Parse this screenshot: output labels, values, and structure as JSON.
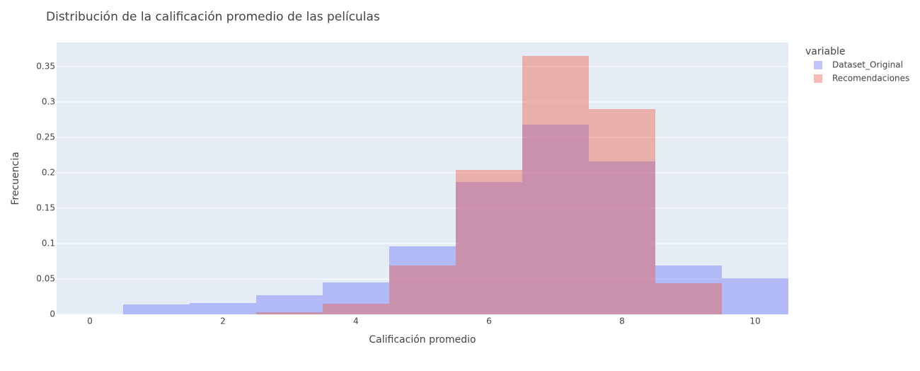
{
  "chart_data": {
    "type": "histogram",
    "title": "Distribución de la calificación promedio de las películas",
    "x_label": "Calificación promedio",
    "y_label": "Frecuencia",
    "legend_title": "variable",
    "bins": [
      -0.5,
      0.5,
      1.5,
      2.5,
      3.5,
      4.5,
      5.5,
      6.5,
      7.5,
      8.5,
      9.5,
      10.5
    ],
    "series": [
      {
        "name": "Dataset_Original",
        "color": "#636efa",
        "values": [
          0,
          0.014,
          0.016,
          0.027,
          0.045,
          0.096,
          0.187,
          0.268,
          0.216,
          0.069,
          0.051
        ]
      },
      {
        "name": "Recomendaciones",
        "color": "#ef553b",
        "values": [
          0,
          0,
          0,
          0.003,
          0.015,
          0.069,
          0.204,
          0.365,
          0.29,
          0.044,
          0
        ]
      }
    ],
    "opacity": 0.4,
    "xlim": [
      -0.5,
      10.5
    ],
    "xticks": [
      0,
      2,
      4,
      6,
      8,
      10
    ],
    "ylim": [
      0,
      0.384
    ],
    "yticks": [
      0,
      0.05,
      0.1,
      0.15,
      0.2,
      0.25,
      0.3,
      0.35
    ],
    "grid": true
  }
}
